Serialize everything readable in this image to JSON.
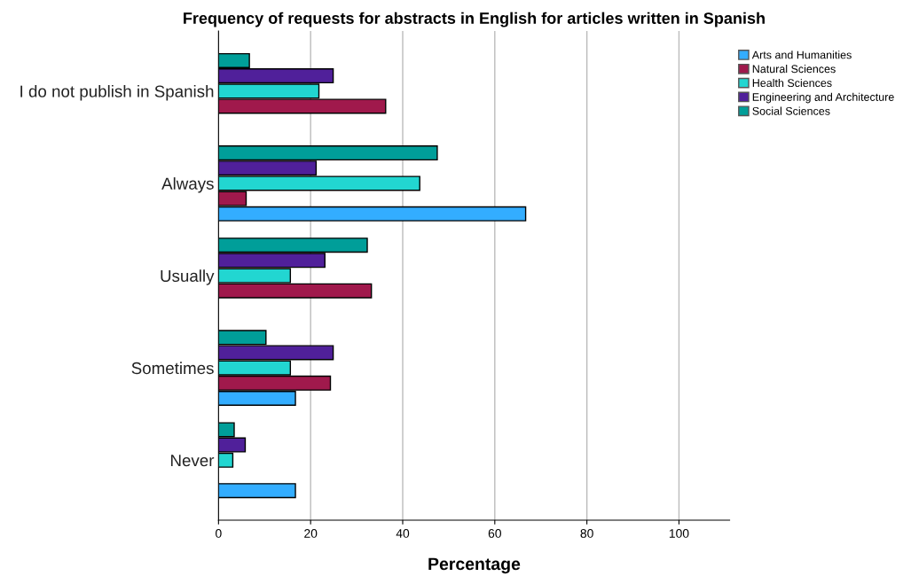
{
  "chart_data": {
    "type": "bar",
    "orientation": "horizontal",
    "title": "Frequency of requests for abstracts in English for articles written in Spanish",
    "xlabel": "Percentage",
    "categories": [
      "I do not publish in Spanish",
      "Always",
      "Usually",
      "Sometimes",
      "Never"
    ],
    "series": [
      {
        "name": "Arts and Humanities",
        "color": "#33adff",
        "values": [
          null,
          66.7,
          null,
          16.7,
          16.7
        ]
      },
      {
        "name": "Natural Sciences",
        "color": "#a0194c",
        "values": [
          36.3,
          6.0,
          33.2,
          24.3,
          null
        ]
      },
      {
        "name": "Health Sciences",
        "color": "#22d6d1",
        "values": [
          21.8,
          43.7,
          15.6,
          15.6,
          3.1
        ]
      },
      {
        "name": "Engineering and Architecture",
        "color": "#50209a",
        "values": [
          24.9,
          21.2,
          23.1,
          24.9,
          5.8
        ]
      },
      {
        "name": "Social Sciences",
        "color": "#009e99",
        "values": [
          6.7,
          47.5,
          32.3,
          10.3,
          3.4
        ]
      }
    ],
    "xlim": [
      0,
      111
    ],
    "xticks": [
      0,
      20,
      40,
      60,
      80,
      100
    ],
    "grid": "x",
    "legend": "top right"
  }
}
